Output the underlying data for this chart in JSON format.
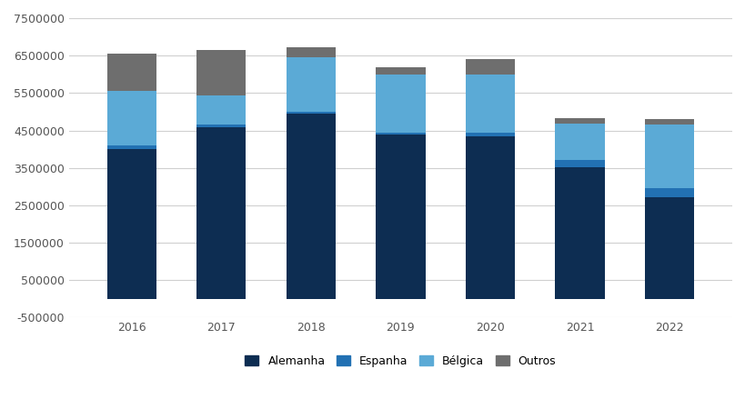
{
  "years": [
    2016,
    2017,
    2018,
    2019,
    2020,
    2021,
    2022
  ],
  "alemanha": [
    4000000,
    4580000,
    4950000,
    4380000,
    4350000,
    3520000,
    2720000
  ],
  "espanha": [
    100000,
    80000,
    50000,
    70000,
    100000,
    180000,
    250000
  ],
  "belgica": [
    1450000,
    770000,
    1450000,
    1550000,
    1550000,
    980000,
    1700000
  ],
  "outros": [
    1000000,
    1230000,
    270000,
    200000,
    400000,
    150000,
    130000
  ],
  "color_alemanha": "#0d2d52",
  "color_espanha": "#2271b3",
  "color_belgica": "#5baad6",
  "color_outros": "#6e6e6e",
  "ylim_min": -500000,
  "ylim_max": 7500000,
  "yticks": [
    -500000,
    500000,
    1500000,
    2500000,
    3500000,
    4500000,
    5500000,
    6500000,
    7500000
  ],
  "legend_labels": [
    "Alemanha",
    "Espanha",
    "Bélgica",
    "Outros"
  ],
  "background_color": "#ffffff",
  "grid_color": "#d0d0d0",
  "bar_width": 0.55
}
